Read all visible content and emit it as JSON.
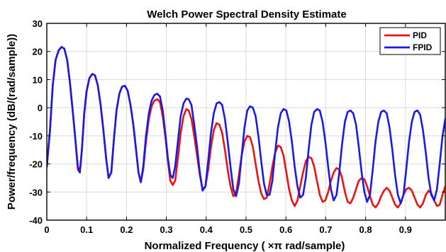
{
  "chart_data": {
    "type": "line",
    "title": "Welch Power Spectral Density Estimate",
    "xlabel": "Normalized Frequency  ( ×π rad/sample)",
    "ylabel": "Power/frequency (dB/(rad/sample))",
    "xlim": [
      0,
      1
    ],
    "ylim": [
      -40,
      30
    ],
    "xticks": [
      0,
      0.1,
      0.2,
      0.3,
      0.4,
      0.5,
      0.6,
      0.7,
      0.8,
      0.9
    ],
    "xtick_labels": [
      "0",
      "0.1",
      "0.2",
      "0.3",
      "0.4",
      "0.5",
      "0.6",
      "0.7",
      "0.8",
      "0.9"
    ],
    "yticks": [
      30,
      20,
      10,
      0,
      -10,
      -20,
      -30,
      -40
    ],
    "ytick_labels": [
      "30",
      "20",
      "10",
      "0",
      "-10",
      "-20",
      "-30",
      "-40"
    ],
    "grid": true,
    "legend_position": "top-right",
    "series": [
      {
        "name": "PID",
        "color": "#ee1111",
        "points": [
          [
            0.0,
            -21
          ],
          [
            0.008,
            -8
          ],
          [
            0.015,
            8
          ],
          [
            0.022,
            17
          ],
          [
            0.03,
            20.5
          ],
          [
            0.037,
            21.6
          ],
          [
            0.044,
            21
          ],
          [
            0.051,
            17
          ],
          [
            0.058,
            9
          ],
          [
            0.065,
            -1
          ],
          [
            0.072,
            -12
          ],
          [
            0.078,
            -22
          ],
          [
            0.083,
            -23
          ],
          [
            0.088,
            -15
          ],
          [
            0.094,
            -2
          ],
          [
            0.1,
            6
          ],
          [
            0.107,
            10.5
          ],
          [
            0.114,
            12
          ],
          [
            0.121,
            11.5
          ],
          [
            0.128,
            8
          ],
          [
            0.135,
            1
          ],
          [
            0.142,
            -8
          ],
          [
            0.149,
            -18
          ],
          [
            0.155,
            -25
          ],
          [
            0.162,
            -23
          ],
          [
            0.168,
            -12
          ],
          [
            0.175,
            -1
          ],
          [
            0.182,
            5
          ],
          [
            0.189,
            7.5
          ],
          [
            0.196,
            7.8
          ],
          [
            0.203,
            6
          ],
          [
            0.21,
            1
          ],
          [
            0.217,
            -6
          ],
          [
            0.224,
            -15
          ],
          [
            0.23,
            -23
          ],
          [
            0.236,
            -26.5
          ],
          [
            0.242,
            -22
          ],
          [
            0.249,
            -12
          ],
          [
            0.256,
            -4
          ],
          [
            0.263,
            0.5
          ],
          [
            0.27,
            2.5
          ],
          [
            0.277,
            3
          ],
          [
            0.284,
            2
          ],
          [
            0.291,
            -3
          ],
          [
            0.298,
            -11
          ],
          [
            0.304,
            -19
          ],
          [
            0.31,
            -26
          ],
          [
            0.316,
            -27.5
          ],
          [
            0.322,
            -26
          ],
          [
            0.329,
            -18
          ],
          [
            0.336,
            -9
          ],
          [
            0.343,
            -3
          ],
          [
            0.35,
            -0.5
          ],
          [
            0.356,
            -1
          ],
          [
            0.363,
            -4
          ],
          [
            0.37,
            -10
          ],
          [
            0.377,
            -17
          ],
          [
            0.384,
            -24
          ],
          [
            0.391,
            -29
          ],
          [
            0.398,
            -28
          ],
          [
            0.405,
            -22
          ],
          [
            0.412,
            -14
          ],
          [
            0.419,
            -8
          ],
          [
            0.426,
            -5.5
          ],
          [
            0.433,
            -6
          ],
          [
            0.44,
            -9
          ],
          [
            0.447,
            -15
          ],
          [
            0.454,
            -22
          ],
          [
            0.461,
            -28
          ],
          [
            0.468,
            -31.5
          ],
          [
            0.475,
            -30.5
          ],
          [
            0.482,
            -24
          ],
          [
            0.489,
            -17
          ],
          [
            0.496,
            -12
          ],
          [
            0.503,
            -10
          ],
          [
            0.51,
            -10.5
          ],
          [
            0.517,
            -14
          ],
          [
            0.524,
            -20
          ],
          [
            0.531,
            -26
          ],
          [
            0.538,
            -30.5
          ],
          [
            0.545,
            -32.5
          ],
          [
            0.552,
            -32
          ],
          [
            0.559,
            -27
          ],
          [
            0.566,
            -21
          ],
          [
            0.573,
            -16
          ],
          [
            0.58,
            -13.5
          ],
          [
            0.587,
            -14
          ],
          [
            0.594,
            -17
          ],
          [
            0.601,
            -23
          ],
          [
            0.608,
            -29
          ],
          [
            0.615,
            -33
          ],
          [
            0.622,
            -35
          ],
          [
            0.629,
            -33
          ],
          [
            0.636,
            -28
          ],
          [
            0.643,
            -23
          ],
          [
            0.65,
            -19
          ],
          [
            0.657,
            -17.5
          ],
          [
            0.664,
            -18
          ],
          [
            0.671,
            -21
          ],
          [
            0.678,
            -26
          ],
          [
            0.685,
            -31
          ],
          [
            0.692,
            -33.5
          ],
          [
            0.699,
            -33
          ],
          [
            0.706,
            -30
          ],
          [
            0.713,
            -26
          ],
          [
            0.72,
            -23
          ],
          [
            0.727,
            -21.5
          ],
          [
            0.734,
            -22
          ],
          [
            0.741,
            -25
          ],
          [
            0.748,
            -30
          ],
          [
            0.755,
            -33.5
          ],
          [
            0.762,
            -34
          ],
          [
            0.769,
            -32
          ],
          [
            0.776,
            -29
          ],
          [
            0.783,
            -26
          ],
          [
            0.79,
            -25
          ],
          [
            0.797,
            -25.5
          ],
          [
            0.804,
            -28
          ],
          [
            0.811,
            -31.5
          ],
          [
            0.818,
            -34.5
          ],
          [
            0.825,
            -35.5
          ],
          [
            0.832,
            -34
          ],
          [
            0.839,
            -31.5
          ],
          [
            0.846,
            -29.5
          ],
          [
            0.853,
            -28.5
          ],
          [
            0.86,
            -29.5
          ],
          [
            0.867,
            -32
          ],
          [
            0.874,
            -34.5
          ],
          [
            0.881,
            -35.5
          ],
          [
            0.888,
            -34
          ],
          [
            0.895,
            -31
          ],
          [
            0.902,
            -29
          ],
          [
            0.909,
            -28.5
          ],
          [
            0.916,
            -29.5
          ],
          [
            0.923,
            -32
          ],
          [
            0.93,
            -34.5
          ],
          [
            0.937,
            -35.5
          ],
          [
            0.944,
            -34
          ],
          [
            0.951,
            -31
          ],
          [
            0.958,
            -29.5
          ],
          [
            0.965,
            -30.5
          ],
          [
            0.972,
            -33
          ],
          [
            0.979,
            -35
          ],
          [
            0.986,
            -34.5
          ],
          [
            0.993,
            -31
          ],
          [
            1.0,
            -28
          ]
        ]
      },
      {
        "name": "FPID",
        "color": "#1a1ae6",
        "points": [
          [
            0.0,
            -21
          ],
          [
            0.008,
            -8
          ],
          [
            0.015,
            8
          ],
          [
            0.022,
            17
          ],
          [
            0.03,
            20.5
          ],
          [
            0.037,
            21.6
          ],
          [
            0.044,
            21
          ],
          [
            0.051,
            17
          ],
          [
            0.058,
            9
          ],
          [
            0.065,
            -1
          ],
          [
            0.072,
            -12
          ],
          [
            0.078,
            -21
          ],
          [
            0.083,
            -23
          ],
          [
            0.088,
            -15
          ],
          [
            0.094,
            -2
          ],
          [
            0.1,
            6
          ],
          [
            0.107,
            10.5
          ],
          [
            0.114,
            12
          ],
          [
            0.121,
            11.5
          ],
          [
            0.128,
            8
          ],
          [
            0.135,
            1
          ],
          [
            0.142,
            -8
          ],
          [
            0.149,
            -18
          ],
          [
            0.155,
            -25
          ],
          [
            0.162,
            -23
          ],
          [
            0.168,
            -12
          ],
          [
            0.175,
            -1
          ],
          [
            0.182,
            5
          ],
          [
            0.189,
            7.5
          ],
          [
            0.196,
            7.8
          ],
          [
            0.203,
            6
          ],
          [
            0.21,
            1
          ],
          [
            0.217,
            -6
          ],
          [
            0.224,
            -15
          ],
          [
            0.23,
            -23
          ],
          [
            0.236,
            -26.5
          ],
          [
            0.242,
            -21
          ],
          [
            0.249,
            -10
          ],
          [
            0.256,
            -2
          ],
          [
            0.263,
            2.5
          ],
          [
            0.27,
            4.5
          ],
          [
            0.277,
            5
          ],
          [
            0.284,
            4
          ],
          [
            0.291,
            -1
          ],
          [
            0.298,
            -10
          ],
          [
            0.304,
            -18
          ],
          [
            0.31,
            -24
          ],
          [
            0.316,
            -25
          ],
          [
            0.322,
            -21
          ],
          [
            0.329,
            -12
          ],
          [
            0.336,
            -3
          ],
          [
            0.343,
            1.5
          ],
          [
            0.35,
            3.2
          ],
          [
            0.356,
            3
          ],
          [
            0.363,
            1
          ],
          [
            0.37,
            -6
          ],
          [
            0.377,
            -14
          ],
          [
            0.384,
            -23
          ],
          [
            0.391,
            -29.5
          ],
          [
            0.398,
            -28
          ],
          [
            0.405,
            -19
          ],
          [
            0.412,
            -9
          ],
          [
            0.419,
            -2
          ],
          [
            0.426,
            1.5
          ],
          [
            0.433,
            2
          ],
          [
            0.44,
            1
          ],
          [
            0.447,
            -4
          ],
          [
            0.454,
            -12
          ],
          [
            0.461,
            -21
          ],
          [
            0.468,
            -29
          ],
          [
            0.475,
            -31.5
          ],
          [
            0.482,
            -27
          ],
          [
            0.489,
            -17
          ],
          [
            0.496,
            -7
          ],
          [
            0.503,
            -1
          ],
          [
            0.51,
            0.5
          ],
          [
            0.517,
            0
          ],
          [
            0.524,
            -3
          ],
          [
            0.531,
            -10
          ],
          [
            0.538,
            -19
          ],
          [
            0.545,
            -27
          ],
          [
            0.552,
            -31
          ],
          [
            0.559,
            -31
          ],
          [
            0.566,
            -26
          ],
          [
            0.573,
            -16
          ],
          [
            0.58,
            -7
          ],
          [
            0.587,
            -2
          ],
          [
            0.594,
            -0.5
          ],
          [
            0.601,
            -1
          ],
          [
            0.608,
            -5
          ],
          [
            0.615,
            -12
          ],
          [
            0.622,
            -21
          ],
          [
            0.629,
            -28
          ],
          [
            0.636,
            -32
          ],
          [
            0.643,
            -31
          ],
          [
            0.65,
            -25
          ],
          [
            0.657,
            -15
          ],
          [
            0.664,
            -6
          ],
          [
            0.671,
            -1.5
          ],
          [
            0.678,
            -0.5
          ],
          [
            0.685,
            -1
          ],
          [
            0.692,
            -5
          ],
          [
            0.699,
            -12
          ],
          [
            0.706,
            -21
          ],
          [
            0.713,
            -29
          ],
          [
            0.72,
            -33
          ],
          [
            0.727,
            -31
          ],
          [
            0.734,
            -23
          ],
          [
            0.741,
            -13
          ],
          [
            0.748,
            -5
          ],
          [
            0.755,
            -1.5
          ],
          [
            0.762,
            -1
          ],
          [
            0.769,
            -2
          ],
          [
            0.776,
            -6
          ],
          [
            0.783,
            -14
          ],
          [
            0.79,
            -23
          ],
          [
            0.797,
            -30
          ],
          [
            0.804,
            -33.5
          ],
          [
            0.811,
            -31
          ],
          [
            0.818,
            -22
          ],
          [
            0.825,
            -12
          ],
          [
            0.832,
            -5
          ],
          [
            0.839,
            -1.5
          ],
          [
            0.846,
            -1
          ],
          [
            0.853,
            -2
          ],
          [
            0.86,
            -7
          ],
          [
            0.867,
            -15
          ],
          [
            0.874,
            -24
          ],
          [
            0.881,
            -31
          ],
          [
            0.888,
            -34
          ],
          [
            0.895,
            -31
          ],
          [
            0.902,
            -22
          ],
          [
            0.909,
            -12
          ],
          [
            0.916,
            -5
          ],
          [
            0.923,
            -1.5
          ],
          [
            0.93,
            -1
          ],
          [
            0.937,
            -2.5
          ],
          [
            0.944,
            -8
          ],
          [
            0.951,
            -16
          ],
          [
            0.958,
            -25
          ],
          [
            0.965,
            -31
          ],
          [
            0.972,
            -33
          ],
          [
            0.979,
            -29
          ],
          [
            0.986,
            -20
          ],
          [
            0.993,
            -10
          ],
          [
            1.0,
            -4
          ]
        ]
      }
    ]
  }
}
